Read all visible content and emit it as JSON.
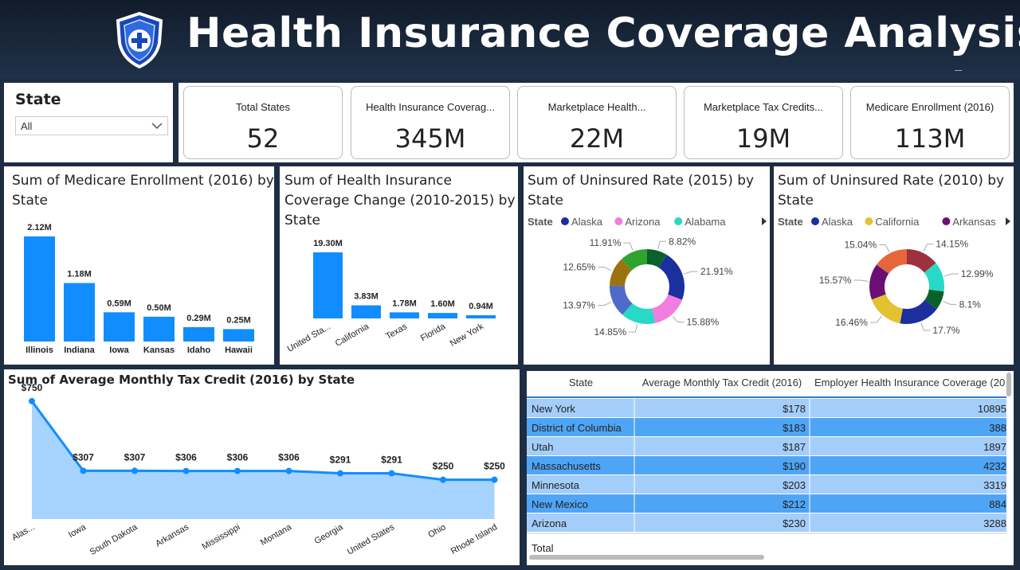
{
  "header": {
    "title": "Health Insurance Coverage Analysis"
  },
  "slicer": {
    "label": "State",
    "value": "All"
  },
  "cards": [
    {
      "label": "Total States",
      "value": "52"
    },
    {
      "label": "Health Insurance Coverag...",
      "value": "345M"
    },
    {
      "label": "Marketplace Health...",
      "value": "22M"
    },
    {
      "label": "Marketplace Tax Credits...",
      "value": "19M"
    },
    {
      "label": "Medicare Enrollment (2016)",
      "value": "113M"
    }
  ],
  "colors": {
    "bar": "#118dff",
    "line": "#118dff",
    "area": "#a6d3ff",
    "row_light": "#a4cefa",
    "row_dark": "#4fa5f5",
    "background": "#1e2d42"
  },
  "chart_data": [
    {
      "type": "bar",
      "title": "Sum of Medicare Enrollment (2016) by State",
      "categories": [
        "Illinois",
        "Indiana",
        "Iowa",
        "Kansas",
        "Idaho",
        "Hawaii"
      ],
      "values": [
        2.12,
        1.18,
        0.59,
        0.5,
        0.29,
        0.25
      ],
      "labels": [
        "2.12M",
        "1.18M",
        "0.59M",
        "0.50M",
        "0.29M",
        "0.25M"
      ]
    },
    {
      "type": "bar",
      "title": "Sum of Health Insurance Coverage Change (2010-2015) by State",
      "categories": [
        "United Sta...",
        "California",
        "Texas",
        "Florida",
        "New York"
      ],
      "values": [
        19.3,
        3.83,
        1.78,
        1.6,
        0.94
      ],
      "labels": [
        "19.30M",
        "3.83M",
        "1.78M",
        "1.60M",
        "0.94M"
      ]
    },
    {
      "type": "pie",
      "title": "Sum of Uninsured Rate (2015) by State",
      "legend_title": "State",
      "legend": [
        "Alaska",
        "Arizona",
        "Alabama"
      ],
      "values": [
        8.82,
        21.91,
        15.88,
        14.85,
        13.97,
        12.65,
        11.91
      ],
      "labels": [
        "8.82%",
        "21.91%",
        "15.88%",
        "14.85%",
        "13.97%",
        "12.65%",
        "11.91%"
      ],
      "colors": [
        "#0b6129",
        "#1b2f9f",
        "#f27de0",
        "#27d9c6",
        "#4e6bc9",
        "#9c7211",
        "#2ea32e"
      ]
    },
    {
      "type": "pie",
      "title": "Sum of Uninsured Rate (2010) by State",
      "legend_title": "State",
      "legend": [
        "Alaska",
        "California",
        "Arkansas"
      ],
      "values": [
        14.15,
        12.99,
        8.1,
        17.7,
        16.46,
        15.57,
        15.04
      ],
      "labels": [
        "14.15%",
        "12.99%",
        "8.1%",
        "17.7%",
        "16.46%",
        "15.57%",
        "15.04%"
      ],
      "colors": [
        "#9e3140",
        "#27d9c6",
        "#0b6129",
        "#1b2f9f",
        "#e3c232",
        "#6b0f74",
        "#e6663a"
      ]
    },
    {
      "type": "area",
      "title": "Sum of Average Monthly Tax Credit (2016) by State",
      "categories": [
        "Alas...",
        "Iowa",
        "South Dakota",
        "Arkansas",
        "Mississippi",
        "Montana",
        "Georgia",
        "United States",
        "Ohio",
        "Rhode Island"
      ],
      "values": [
        750,
        307,
        307,
        306,
        306,
        306,
        291,
        291,
        250,
        250
      ],
      "labels": [
        "$750",
        "$307",
        "$307",
        "$306",
        "$306",
        "$306",
        "$291",
        "$291",
        "$250",
        "$250"
      ]
    }
  ],
  "table": {
    "headers": [
      "State",
      "Average Monthly Tax Credit (2016)",
      "Employer Health Insurance Coverage (20"
    ],
    "rows": [
      [
        "New York",
        "$178",
        "10895"
      ],
      [
        "District of Columbia",
        "$183",
        "388"
      ],
      [
        "Utah",
        "$187",
        "1897"
      ],
      [
        "Massachusetts",
        "$190",
        "4232"
      ],
      [
        "Minnesota",
        "$203",
        "3319"
      ],
      [
        "New Mexico",
        "$212",
        "884"
      ],
      [
        "Arizona",
        "$230",
        "3288"
      ]
    ],
    "total_label": "Total"
  }
}
